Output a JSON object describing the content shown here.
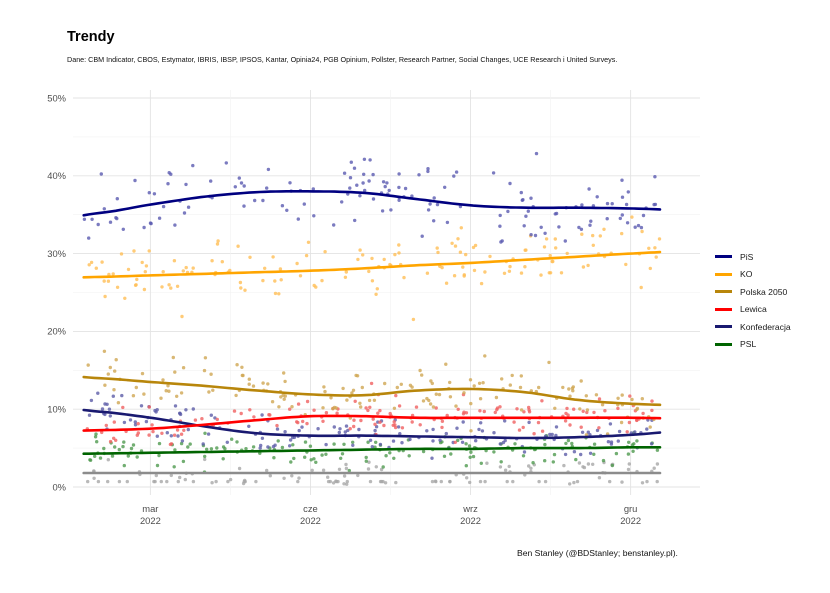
{
  "title": "Trendy",
  "subtitle": "Dane: CBM Indicator, CBOS, Estymator, IBRIS, IBSP, IPSOS, Kantar, Opinia24, PGB Opinium, Pollster, Research Partner, Social Changes, UCE Research i United Surveys.",
  "caption": "Ben Stanley (@BDStanley; benstanley.pl).",
  "chart_data": {
    "type": "scatter",
    "title": "Trendy",
    "xlabel": "",
    "ylabel": "",
    "ylim": [
      0,
      50
    ],
    "y_ticks": [
      0,
      10,
      20,
      30,
      40,
      50
    ],
    "y_tick_labels": [
      "0%",
      "10%",
      "20%",
      "30%",
      "40%",
      "50%"
    ],
    "x_range_months": [
      0.55,
      12.3
    ],
    "x_ticks": [
      {
        "month": 2,
        "label_top": "mar",
        "label_bottom": "2022"
      },
      {
        "month": 5,
        "label_top": "cze",
        "label_bottom": "2022"
      },
      {
        "month": 8,
        "label_top": "wrz",
        "label_bottom": "2022"
      },
      {
        "month": 11,
        "label_top": "gru",
        "label_bottom": "2022"
      }
    ],
    "x_note": "x is months since 1 Jan 2022 (0 = 1 Jan 2022); data spans roughly early Jan 2022 to mid Dec 2022",
    "grid": true,
    "legend_position": "right",
    "trend_knots_month": [
      1.0,
      2.0,
      3.0,
      4.0,
      5.0,
      6.0,
      7.0,
      8.0,
      9.0,
      10.0,
      11.0,
      12.0
    ],
    "series": [
      {
        "name": "PiS",
        "color": "#000080",
        "point_color": "#5a5ab0",
        "trend": [
          35.2,
          36.3,
          37.3,
          37.9,
          38.0,
          37.8,
          37.0,
          36.2,
          35.9,
          35.9,
          35.8,
          35.6
        ],
        "point_sd": 2.2,
        "point_count": 150
      },
      {
        "name": "KO",
        "color": "#FFA500",
        "point_color": "#ffbe55",
        "trend": [
          27.0,
          27.2,
          27.4,
          27.6,
          27.8,
          28.1,
          28.5,
          28.8,
          29.2,
          29.6,
          30.0,
          30.3
        ],
        "point_sd": 1.8,
        "point_count": 150
      },
      {
        "name": "Polska 2050",
        "color": "#B8860B",
        "point_color": "#cfa652",
        "trend": [
          14.0,
          13.5,
          13.0,
          12.4,
          11.9,
          11.8,
          12.4,
          12.6,
          12.2,
          11.2,
          10.7,
          10.5
        ],
        "point_sd": 1.7,
        "point_count": 150
      },
      {
        "name": "Lewica",
        "color": "#FF0000",
        "point_color": "#f06060",
        "trend": [
          7.3,
          7.5,
          8.0,
          8.6,
          9.1,
          9.1,
          8.9,
          8.9,
          8.9,
          8.9,
          8.9,
          8.8
        ],
        "point_sd": 1.2,
        "point_count": 150
      },
      {
        "name": "Konfederacja",
        "color": "#191970",
        "point_color": "#5c5ca8",
        "trend": [
          9.7,
          8.9,
          7.8,
          6.9,
          6.6,
          6.6,
          6.5,
          6.4,
          6.3,
          6.4,
          6.7,
          7.2
        ],
        "point_sd": 1.2,
        "point_count": 150
      },
      {
        "name": "PSL",
        "color": "#006400",
        "point_color": "#4f9a4f",
        "trend": [
          4.3,
          4.4,
          4.5,
          4.6,
          4.7,
          4.8,
          4.9,
          4.9,
          5.0,
          5.0,
          5.1,
          5.1
        ],
        "point_sd": 1.1,
        "point_count": 150
      },
      {
        "name": "",
        "color": "#8c8c8c",
        "point_color": "#a8a8a8",
        "trend": [
          1.8,
          1.8,
          1.8,
          1.8,
          1.8,
          1.8,
          1.8,
          1.8,
          1.8,
          1.8,
          1.8,
          1.8
        ],
        "point_sd": 1.0,
        "point_count": 120,
        "floor_value": 0.7,
        "show_in_legend": false
      }
    ]
  }
}
